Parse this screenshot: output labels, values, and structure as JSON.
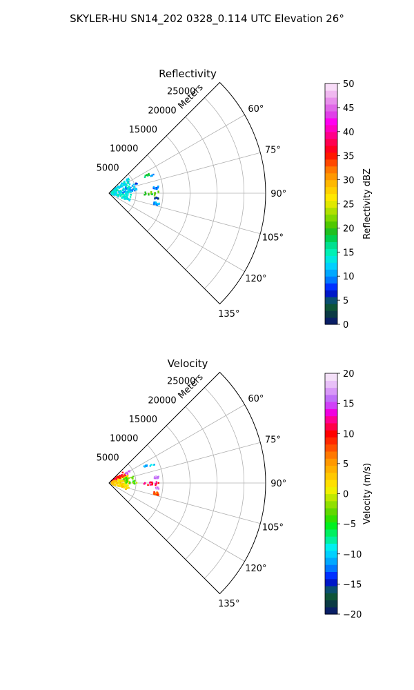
{
  "figure": {
    "suptitle": "SKYLER-HU  SN14_202  0328_0.114 UTC Elevation 26°"
  },
  "chart_data": [
    {
      "type": "scatter",
      "projection": "polar-sector",
      "title": "Reflectivity",
      "range_label": "Meters",
      "azimuth_range_deg": [
        45,
        135
      ],
      "azimuth_tick_labels": [
        "60°",
        "75°",
        "90°",
        "105°",
        "120°",
        "135°"
      ],
      "range_ticks": [
        5000,
        10000,
        15000,
        20000,
        25000
      ],
      "range_tick_labels": [
        "5000",
        "10000",
        "15000",
        "20000",
        "25000"
      ],
      "rlim": [
        0,
        29000
      ],
      "grid": true,
      "colorbar": {
        "label": "Reflectivity dBZ",
        "range": [
          0,
          50
        ],
        "ticks": [
          "0",
          "5",
          "10",
          "15",
          "20",
          "25",
          "30",
          "35",
          "40",
          "45",
          "50"
        ],
        "colors": [
          "#0a1f66",
          "#0b3a44",
          "#0e5438",
          "#0a4f70",
          "#0018c8",
          "#0030ff",
          "#0078ff",
          "#00a8ff",
          "#00d0ff",
          "#00e8e0",
          "#00f0b4",
          "#00e090",
          "#00d050",
          "#20c020",
          "#50c800",
          "#80d800",
          "#b0e000",
          "#e0e800",
          "#ffe800",
          "#ffd000",
          "#ffb800",
          "#ff9800",
          "#ff7800",
          "#ff4800",
          "#ff1800",
          "#ff0020",
          "#ff0050",
          "#ff0088",
          "#ff00c0",
          "#ff00f0",
          "#e040e8",
          "#e068e8",
          "#e890ec",
          "#f0b8f0",
          "#f8dcf8"
        ]
      },
      "clusters": [
        {
          "az": [
            52,
            64
          ],
          "r": [
            500,
            4500
          ],
          "value": 13,
          "n": 60
        },
        {
          "az": [
            66,
            112
          ],
          "r": [
            500,
            4200
          ],
          "value": 14,
          "n": 120
        },
        {
          "az": [
            70,
            88
          ],
          "r": [
            2500,
            5200
          ],
          "value": 11,
          "n": 30
        },
        {
          "az": [
            64,
            66
          ],
          "r": [
            7200,
            8200
          ],
          "value": 18,
          "n": 10
        },
        {
          "az": [
            66,
            68
          ],
          "r": [
            8200,
            9200
          ],
          "value": 11,
          "n": 4
        },
        {
          "az": [
            82,
            85
          ],
          "r": [
            8300,
            9300
          ],
          "value": 10,
          "n": 12
        },
        {
          "az": [
            88,
            93
          ],
          "r": [
            6000,
            9300
          ],
          "value": 20,
          "n": 16
        },
        {
          "az": [
            95,
            97
          ],
          "r": [
            8500,
            9300
          ],
          "value": 6,
          "n": 8
        },
        {
          "az": [
            101,
            104
          ],
          "r": [
            8500,
            9500
          ],
          "value": 11,
          "n": 22
        },
        {
          "az": [
            70,
            72
          ],
          "r": [
            5000,
            5600
          ],
          "value": 9,
          "n": 3
        }
      ]
    },
    {
      "type": "scatter",
      "projection": "polar-sector",
      "title": "Velocity",
      "range_label": "Meters",
      "azimuth_range_deg": [
        45,
        135
      ],
      "azimuth_tick_labels": [
        "60°",
        "75°",
        "90°",
        "105°",
        "120°",
        "135°"
      ],
      "range_ticks": [
        5000,
        10000,
        15000,
        20000,
        25000
      ],
      "range_tick_labels": [
        "5000",
        "10000",
        "15000",
        "20000",
        "25000"
      ],
      "rlim": [
        0,
        29000
      ],
      "grid": true,
      "colorbar": {
        "label": "Velocity (m/s)",
        "range": [
          -20,
          20
        ],
        "ticks": [
          "−20",
          "−15",
          "−10",
          "−5",
          "0",
          "5",
          "10",
          "15",
          "20"
        ],
        "colors": [
          "#0a1f66",
          "#0b3a44",
          "#0e5438",
          "#0a4f70",
          "#0018c8",
          "#0030ff",
          "#0078ff",
          "#00a8ff",
          "#00d0ff",
          "#00f0f0",
          "#00f0a0",
          "#00f060",
          "#00f020",
          "#30e000",
          "#60d800",
          "#90e000",
          "#c0e800",
          "#f0f000",
          "#ffe000",
          "#ffc800",
          "#ffb000",
          "#ff9800",
          "#ff7800",
          "#ff5000",
          "#ff2800",
          "#ff0000",
          "#ff0048",
          "#ff0090",
          "#f000e0",
          "#d040f8",
          "#c070f8",
          "#d898f8",
          "#e8c0f8",
          "#f4e0f8"
        ]
      },
      "clusters": [
        {
          "az": [
            52,
            68
          ],
          "r": [
            500,
            3500
          ],
          "value": 10,
          "n": 60
        },
        {
          "az": [
            68,
            112
          ],
          "r": [
            500,
            3800
          ],
          "value": 2,
          "n": 120
        },
        {
          "az": [
            72,
            92
          ],
          "r": [
            2800,
            5200
          ],
          "value": -3,
          "n": 30
        },
        {
          "az": [
            58,
            64
          ],
          "r": [
            3500,
            4500
          ],
          "value": 16,
          "n": 6
        },
        {
          "az": [
            64,
            66
          ],
          "r": [
            7200,
            8200
          ],
          "value": -12,
          "n": 10
        },
        {
          "az": [
            66,
            68
          ],
          "r": [
            8200,
            9200
          ],
          "value": -11,
          "n": 4
        },
        {
          "az": [
            82,
            85
          ],
          "r": [
            8300,
            9300
          ],
          "value": 17,
          "n": 12
        },
        {
          "az": [
            88,
            93
          ],
          "r": [
            6000,
            9300
          ],
          "value": 11,
          "n": 16
        },
        {
          "az": [
            95,
            97
          ],
          "r": [
            8500,
            9300
          ],
          "value": 16,
          "n": 8
        },
        {
          "az": [
            101,
            104
          ],
          "r": [
            8500,
            9500
          ],
          "value": 7,
          "n": 22
        }
      ]
    }
  ]
}
